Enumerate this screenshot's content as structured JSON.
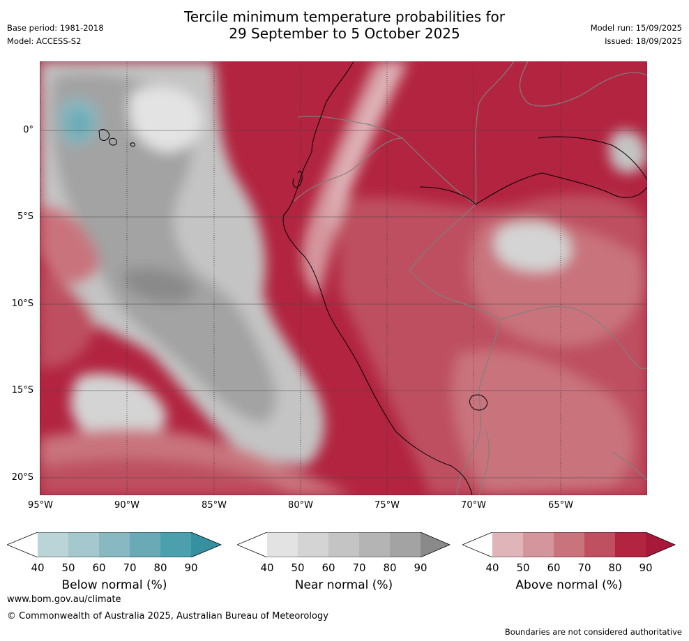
{
  "title_line1": "Tercile minimum temperature probabilities for",
  "title_line2": "29 September to 5 October 2025",
  "base_period": "Base period: 1981-2018",
  "model": "Model: ACCESS-S2",
  "model_run": "Model run: 15/09/2025",
  "issued": "Issued: 18/09/2025",
  "lat_labels": [
    "0°",
    "5°S",
    "10°S",
    "15°S",
    "20°S"
  ],
  "lon_labels": [
    "95°W",
    "90°W",
    "85°W",
    "80°W",
    "75°W",
    "70°W",
    "65°W"
  ],
  "colors": {
    "above": [
      "#ffffff",
      "#dfb5ba",
      "#d4959c",
      "#c9737d",
      "#be5060",
      "#b22440",
      "#a81838"
    ],
    "near": [
      "#ffffff",
      "#e3e3e3",
      "#d4d4d4",
      "#c4c4c4",
      "#b4b4b4",
      "#a3a3a3",
      "#8a8a8a"
    ],
    "below": [
      "#ffffff",
      "#bad4d8",
      "#a4c8cd",
      "#88b8c1",
      "#6aaab6",
      "#4ca0ae",
      "#3590a0"
    ]
  },
  "colorbars": [
    {
      "key": "below",
      "ticks": [
        "40",
        "50",
        "60",
        "70",
        "80",
        "90"
      ],
      "label": "Below normal (%)"
    },
    {
      "key": "near",
      "ticks": [
        "40",
        "50",
        "60",
        "70",
        "80",
        "90"
      ],
      "label": "Near normal (%)"
    },
    {
      "key": "above",
      "ticks": [
        "40",
        "50",
        "60",
        "70",
        "80",
        "90"
      ],
      "label": "Above normal (%)"
    }
  ],
  "website": "www.bom.gov.au/climate",
  "copyright": "© Commonwealth of Australia 2025, Australian Bureau of Meteorology",
  "disclaimer": "Boundaries are not considered authoritative"
}
